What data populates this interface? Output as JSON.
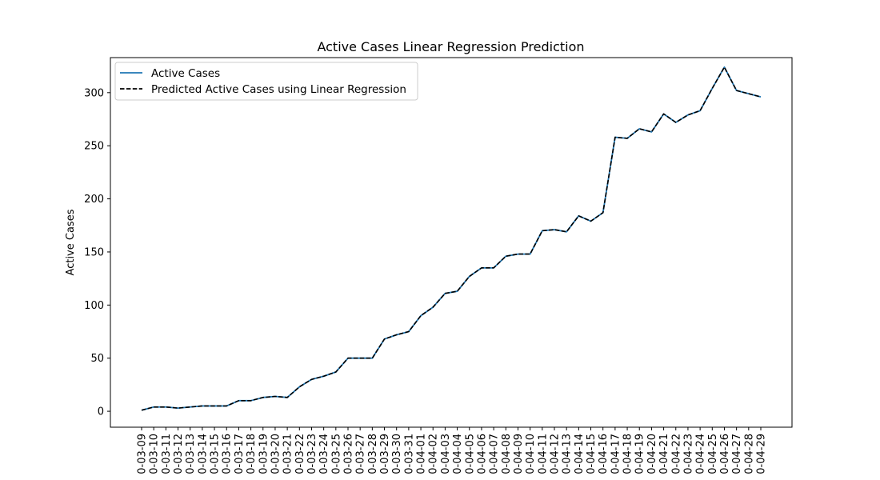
{
  "chart_data": {
    "type": "line",
    "title": "Active Cases Linear Regression Prediction",
    "xlabel": "",
    "ylabel": "Active Cases",
    "ylim": [
      -15,
      333
    ],
    "yticks": [
      0,
      50,
      100,
      150,
      200,
      250,
      300
    ],
    "grid": false,
    "legend_position": "top-left",
    "x": [
      "0-03-09",
      "0-03-10",
      "0-03-11",
      "0-03-12",
      "0-03-13",
      "0-03-14",
      "0-03-15",
      "0-03-16",
      "0-03-17",
      "0-03-18",
      "0-03-19",
      "0-03-20",
      "0-03-21",
      "0-03-22",
      "0-03-23",
      "0-03-24",
      "0-03-25",
      "0-03-26",
      "0-03-27",
      "0-03-28",
      "0-03-29",
      "0-03-30",
      "0-03-31",
      "0-04-01",
      "0-04-02",
      "0-04-03",
      "0-04-04",
      "0-04-05",
      "0-04-06",
      "0-04-07",
      "0-04-08",
      "0-04-09",
      "0-04-10",
      "0-04-11",
      "0-04-12",
      "0-04-13",
      "0-04-14",
      "0-04-15",
      "0-04-16",
      "0-04-17",
      "0-04-18",
      "0-04-19",
      "0-04-20",
      "0-04-21",
      "0-04-22",
      "0-04-23",
      "0-04-24",
      "0-04-25",
      "0-04-26",
      "0-04-27",
      "0-04-28",
      "0-04-29"
    ],
    "series": [
      {
        "name": "Active Cases",
        "color": "#1f77b4",
        "style": "solid",
        "values": [
          1,
          4,
          4,
          3,
          4,
          5,
          5,
          5,
          10,
          10,
          13,
          14,
          13,
          23,
          30,
          33,
          37,
          50,
          50,
          50,
          68,
          72,
          75,
          90,
          98,
          111,
          113,
          127,
          135,
          135,
          146,
          148,
          148,
          170,
          171,
          169,
          184,
          179,
          187,
          258,
          257,
          266,
          263,
          280,
          272,
          279,
          283,
          304,
          324,
          302,
          299,
          296
        ]
      },
      {
        "name": "Predicted Active Cases using Linear Regression",
        "color": "#000000",
        "style": "dashed",
        "values": [
          1,
          4,
          4,
          3,
          4,
          5,
          5,
          5,
          10,
          10,
          13,
          14,
          13,
          23,
          30,
          33,
          37,
          50,
          50,
          50,
          68,
          72,
          75,
          90,
          98,
          111,
          113,
          127,
          135,
          135,
          146,
          148,
          148,
          170,
          171,
          169,
          184,
          179,
          187,
          258,
          257,
          266,
          263,
          280,
          272,
          279,
          283,
          304,
          324,
          302,
          299,
          296
        ]
      }
    ]
  }
}
